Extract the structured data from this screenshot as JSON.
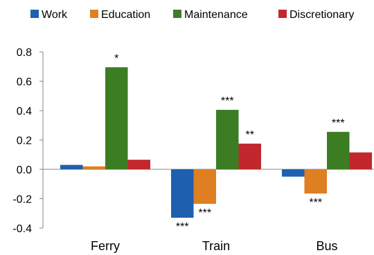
{
  "chart_data": {
    "type": "bar",
    "categories": [
      "Ferry",
      "Train",
      "Bus"
    ],
    "series": [
      {
        "name": "Work",
        "color": "#1F5FAF",
        "values": [
          0.03,
          -0.33,
          -0.05
        ]
      },
      {
        "name": "Education",
        "color": "#E07E22",
        "values": [
          0.02,
          -0.235,
          -0.165
        ]
      },
      {
        "name": "Maintenance",
        "color": "#3C7D23",
        "values": [
          0.695,
          0.405,
          0.255
        ]
      },
      {
        "name": "Discretionary",
        "color": "#C1272D",
        "values": [
          0.065,
          0.175,
          0.115
        ]
      }
    ],
    "significance": [
      [
        "",
        "",
        "*",
        ""
      ],
      [
        "***",
        "***",
        "***",
        "**"
      ],
      [
        "",
        "***",
        "***",
        ""
      ]
    ],
    "ylim": [
      -0.4,
      0.8
    ],
    "yticks": [
      "0.8",
      "0.6",
      "0.4",
      "0.2",
      "0.0",
      "-0.2",
      "-0.4"
    ],
    "ytick_values": [
      0.8,
      0.6,
      0.4,
      0.2,
      0.0,
      -0.2,
      -0.4
    ],
    "legend_position": "top",
    "grid": false,
    "title": "",
    "xlabel": "",
    "ylabel": ""
  }
}
